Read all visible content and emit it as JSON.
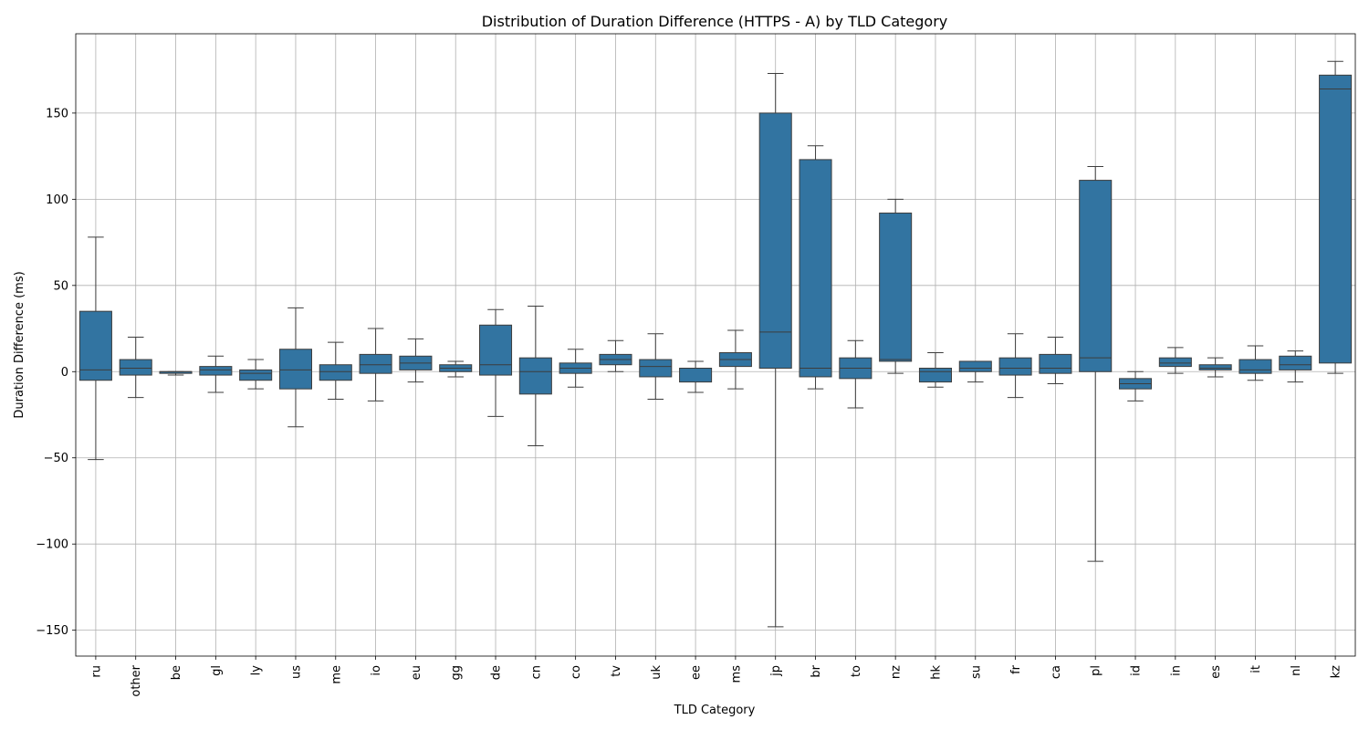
{
  "chart_data": {
    "type": "box",
    "title": "Distribution of Duration Difference (HTTPS - A) by TLD Category",
    "xlabel": "TLD Category",
    "ylabel": "Duration Difference (ms)",
    "ylim": [
      -165,
      196
    ],
    "yticks": [
      -150,
      -100,
      -50,
      0,
      50,
      100,
      150
    ],
    "grid": true,
    "box_color": "#3274a1",
    "line_color": "#3d3d3d",
    "categories": [
      "ru",
      "other",
      "be",
      "gl",
      "ly",
      "us",
      "me",
      "io",
      "eu",
      "gg",
      "de",
      "cn",
      "co",
      "tv",
      "uk",
      "ee",
      "ms",
      "jp",
      "br",
      "to",
      "nz",
      "hk",
      "su",
      "fr",
      "ca",
      "pl",
      "id",
      "in",
      "es",
      "it",
      "nl",
      "kz"
    ],
    "boxes": [
      {
        "category": "ru",
        "whislo": -51,
        "q1": -5,
        "med": 1,
        "q3": 35,
        "whishi": 78
      },
      {
        "category": "other",
        "whislo": -15,
        "q1": -2,
        "med": 2,
        "q3": 7,
        "whishi": 20
      },
      {
        "category": "be",
        "whislo": -2,
        "q1": -1,
        "med": 0,
        "q3": 0,
        "whishi": 0
      },
      {
        "category": "gl",
        "whislo": -12,
        "q1": -2,
        "med": 1,
        "q3": 3,
        "whishi": 9
      },
      {
        "category": "ly",
        "whislo": -10,
        "q1": -5,
        "med": -1,
        "q3": 1,
        "whishi": 7
      },
      {
        "category": "us",
        "whislo": -32,
        "q1": -10,
        "med": 1,
        "q3": 13,
        "whishi": 37
      },
      {
        "category": "me",
        "whislo": -16,
        "q1": -5,
        "med": 0,
        "q3": 4,
        "whishi": 17
      },
      {
        "category": "io",
        "whislo": -17,
        "q1": -1,
        "med": 4,
        "q3": 10,
        "whishi": 25
      },
      {
        "category": "eu",
        "whislo": -6,
        "q1": 1,
        "med": 5,
        "q3": 9,
        "whishi": 19
      },
      {
        "category": "gg",
        "whislo": -3,
        "q1": 0,
        "med": 2,
        "q3": 4,
        "whishi": 6
      },
      {
        "category": "de",
        "whislo": -26,
        "q1": -2,
        "med": 4,
        "q3": 27,
        "whishi": 36
      },
      {
        "category": "cn",
        "whislo": -43,
        "q1": -13,
        "med": 0,
        "q3": 8,
        "whishi": 38
      },
      {
        "category": "co",
        "whislo": -9,
        "q1": -1,
        "med": 2,
        "q3": 5,
        "whishi": 13
      },
      {
        "category": "tv",
        "whislo": 0,
        "q1": 4,
        "med": 7,
        "q3": 10,
        "whishi": 18
      },
      {
        "category": "uk",
        "whislo": -16,
        "q1": -3,
        "med": 3,
        "q3": 7,
        "whishi": 22
      },
      {
        "category": "ee",
        "whislo": -12,
        "q1": -6,
        "med": 2,
        "q3": 2,
        "whishi": 6
      },
      {
        "category": "ms",
        "whislo": -10,
        "q1": 3,
        "med": 7,
        "q3": 11,
        "whishi": 24
      },
      {
        "category": "jp",
        "whislo": -148,
        "q1": 2,
        "med": 23,
        "q3": 150,
        "whishi": 173
      },
      {
        "category": "br",
        "whislo": -10,
        "q1": -3,
        "med": 2,
        "q3": 123,
        "whishi": 131
      },
      {
        "category": "to",
        "whislo": -21,
        "q1": -4,
        "med": 2,
        "q3": 8,
        "whishi": 18
      },
      {
        "category": "nz",
        "whislo": -1,
        "q1": 6,
        "med": 7,
        "q3": 92,
        "whishi": 100
      },
      {
        "category": "hk",
        "whislo": -9,
        "q1": -6,
        "med": 0,
        "q3": 2,
        "whishi": 11
      },
      {
        "category": "su",
        "whislo": -6,
        "q1": 0,
        "med": 2,
        "q3": 6,
        "whishi": 6
      },
      {
        "category": "fr",
        "whislo": -15,
        "q1": -2,
        "med": 2,
        "q3": 8,
        "whishi": 22
      },
      {
        "category": "ca",
        "whislo": -7,
        "q1": -1,
        "med": 2,
        "q3": 10,
        "whishi": 20
      },
      {
        "category": "pl",
        "whislo": -110,
        "q1": 0,
        "med": 8,
        "q3": 111,
        "whishi": 119
      },
      {
        "category": "id",
        "whislo": -17,
        "q1": -10,
        "med": -7,
        "q3": -4,
        "whishi": 0
      },
      {
        "category": "in",
        "whislo": -1,
        "q1": 3,
        "med": 5,
        "q3": 8,
        "whishi": 14
      },
      {
        "category": "es",
        "whislo": -3,
        "q1": 1,
        "med": 2,
        "q3": 4,
        "whishi": 8
      },
      {
        "category": "it",
        "whislo": -5,
        "q1": -1,
        "med": 1,
        "q3": 7,
        "whishi": 15
      },
      {
        "category": "nl",
        "whislo": -6,
        "q1": 1,
        "med": 4,
        "q3": 9,
        "whishi": 12
      },
      {
        "category": "kz",
        "whislo": -1,
        "q1": 5,
        "med": 164,
        "q3": 172,
        "whishi": 180
      }
    ]
  }
}
